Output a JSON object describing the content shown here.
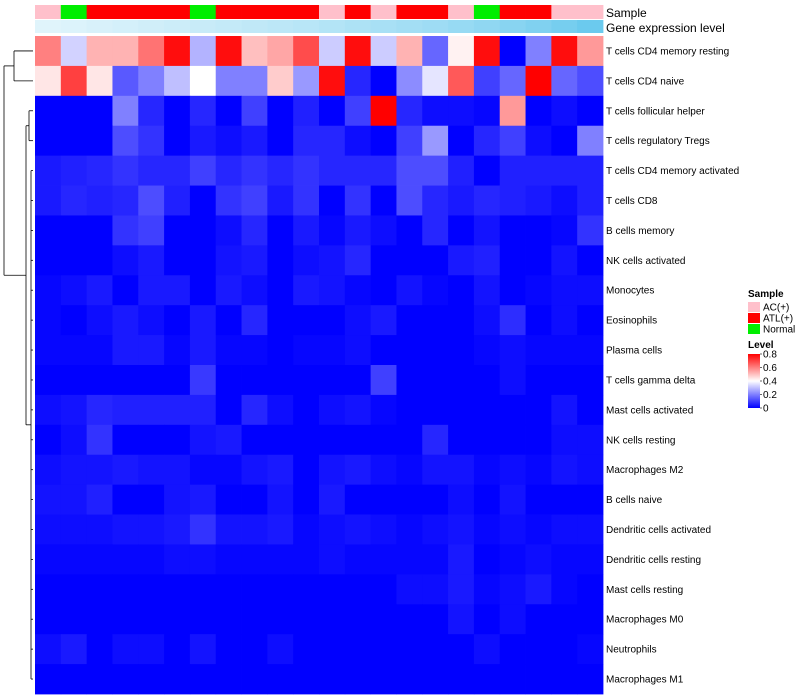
{
  "chart_data": {
    "type": "heatmap",
    "annotations": {
      "sample_label": "Sample",
      "expression_label": "Gene expression level",
      "samples": [
        "AC(+)",
        "Normal",
        "ATL(+)",
        "ATL(+)",
        "ATL(+)",
        "ATL(+)",
        "Normal",
        "ATL(+)",
        "ATL(+)",
        "ATL(+)",
        "ATL(+)",
        "AC(+)",
        "ATL(+)",
        "AC(+)",
        "ATL(+)",
        "ATL(+)",
        "AC(+)",
        "Normal",
        "ATL(+)",
        "ATL(+)",
        "AC(+)",
        "AC(+)"
      ],
      "expression": [
        0.0,
        0.03,
        0.06,
        0.09,
        0.12,
        0.15,
        0.18,
        0.21,
        0.24,
        0.27,
        0.3,
        0.34,
        0.38,
        0.42,
        0.46,
        0.5,
        0.55,
        0.6,
        0.66,
        0.72,
        0.8,
        0.88
      ]
    },
    "sample_colors": {
      "AC(+)": "#FFC0CB",
      "ATL(+)": "#FF0000",
      "Normal": "#00EE00"
    },
    "expression_colors": {
      "low": "#E0F4FB",
      "high": "#5BC4EC"
    },
    "rows": [
      "T cells CD4 memory resting",
      "T cells CD4 naive",
      "T cells follicular helper",
      "T cells regulatory  Tregs",
      "T cells CD4 memory activated",
      "T cells CD8",
      "B cells memory",
      "NK cells activated",
      "Monocytes",
      "Eosinophils",
      "Plasma cells",
      "T cells gamma delta",
      "Mast cells activated",
      "NK cells resting",
      "Macrophages M2",
      "B cells naive",
      "Dendritic cells activated",
      "Dendritic cells resting",
      "Mast cells resting",
      "Macrophages M0",
      "Neutrophils",
      "Macrophages M1"
    ],
    "values": [
      [
        0.6,
        0.33,
        0.52,
        0.52,
        0.62,
        0.78,
        0.28,
        0.78,
        0.5,
        0.54,
        0.68,
        0.32,
        0.78,
        0.32,
        0.52,
        0.16,
        0.42,
        0.78,
        0.0,
        0.2,
        0.78,
        0.56
      ],
      [
        0.44,
        0.7,
        0.44,
        0.14,
        0.2,
        0.3,
        0.4,
        0.2,
        0.2,
        0.48,
        0.24,
        0.78,
        0.06,
        0.0,
        0.22,
        0.36,
        0.66,
        0.1,
        0.16,
        0.8,
        0.16,
        0.12
      ],
      [
        0.0,
        0.0,
        0.0,
        0.2,
        0.06,
        0.0,
        0.06,
        0.0,
        0.1,
        0.0,
        0.05,
        0.0,
        0.1,
        0.8,
        0.06,
        0.02,
        0.02,
        0.01,
        0.56,
        0.0,
        0.02,
        0.0
      ],
      [
        0.0,
        0.0,
        0.0,
        0.12,
        0.08,
        0.0,
        0.04,
        0.02,
        0.04,
        0.0,
        0.06,
        0.06,
        0.02,
        0.0,
        0.1,
        0.24,
        0.0,
        0.06,
        0.1,
        0.02,
        0.0,
        0.2
      ],
      [
        0.04,
        0.05,
        0.06,
        0.08,
        0.06,
        0.06,
        0.1,
        0.06,
        0.08,
        0.06,
        0.08,
        0.06,
        0.06,
        0.06,
        0.12,
        0.12,
        0.05,
        0.0,
        0.05,
        0.05,
        0.05,
        0.05
      ],
      [
        0.04,
        0.06,
        0.05,
        0.06,
        0.12,
        0.05,
        0.0,
        0.08,
        0.1,
        0.04,
        0.08,
        0.0,
        0.08,
        0.0,
        0.12,
        0.06,
        0.04,
        0.06,
        0.05,
        0.04,
        0.02,
        0.05
      ],
      [
        0.0,
        0.0,
        0.0,
        0.08,
        0.1,
        0.0,
        0.0,
        0.02,
        0.06,
        0.0,
        0.04,
        0.01,
        0.04,
        0.02,
        0.0,
        0.06,
        0.0,
        0.03,
        0.0,
        0.0,
        0.01,
        0.08
      ],
      [
        0.0,
        0.0,
        0.0,
        0.02,
        0.04,
        0.0,
        0.0,
        0.03,
        0.04,
        0.0,
        0.02,
        0.03,
        0.06,
        0.0,
        0.0,
        0.0,
        0.04,
        0.05,
        0.0,
        0.0,
        0.03,
        0.0
      ],
      [
        0.01,
        0.02,
        0.04,
        0.0,
        0.04,
        0.04,
        0.0,
        0.04,
        0.02,
        0.0,
        0.04,
        0.03,
        0.01,
        0.0,
        0.03,
        0.01,
        0.0,
        0.03,
        0.0,
        0.01,
        0.02,
        0.02
      ],
      [
        0.01,
        0.0,
        0.02,
        0.04,
        0.02,
        0.0,
        0.04,
        0.0,
        0.06,
        0.0,
        0.0,
        0.0,
        0.02,
        0.04,
        0.0,
        0.0,
        0.0,
        0.02,
        0.07,
        0.0,
        0.02,
        0.0
      ],
      [
        0.01,
        0.01,
        0.01,
        0.04,
        0.04,
        0.01,
        0.04,
        0.01,
        0.01,
        0.0,
        0.01,
        0.01,
        0.02,
        0.0,
        0.0,
        0.0,
        0.0,
        0.01,
        0.02,
        0.01,
        0.01,
        0.01
      ],
      [
        0.0,
        0.0,
        0.0,
        0.0,
        0.0,
        0.0,
        0.09,
        0.0,
        0.0,
        0.0,
        0.0,
        0.0,
        0.0,
        0.1,
        0.0,
        0.0,
        0.0,
        0.0,
        0.02,
        0.0,
        0.0,
        0.0
      ],
      [
        0.02,
        0.03,
        0.06,
        0.05,
        0.05,
        0.05,
        0.05,
        0.0,
        0.06,
        0.02,
        0.0,
        0.02,
        0.03,
        0.01,
        0.0,
        0.0,
        0.0,
        0.0,
        0.0,
        0.0,
        0.03,
        0.0
      ],
      [
        0.0,
        0.02,
        0.08,
        0.0,
        0.0,
        0.0,
        0.03,
        0.04,
        0.0,
        0.0,
        0.0,
        0.0,
        0.0,
        0.0,
        0.0,
        0.06,
        0.0,
        0.0,
        0.0,
        0.0,
        0.02,
        0.02
      ],
      [
        0.02,
        0.03,
        0.03,
        0.04,
        0.03,
        0.03,
        0.01,
        0.01,
        0.03,
        0.04,
        0.0,
        0.03,
        0.04,
        0.02,
        0.01,
        0.03,
        0.03,
        0.01,
        0.02,
        0.01,
        0.03,
        0.02
      ],
      [
        0.03,
        0.03,
        0.05,
        0.0,
        0.0,
        0.03,
        0.04,
        0.0,
        0.0,
        0.03,
        0.0,
        0.04,
        0.0,
        0.0,
        0.0,
        0.0,
        0.02,
        0.0,
        0.03,
        0.0,
        0.0,
        0.0
      ],
      [
        0.02,
        0.02,
        0.02,
        0.03,
        0.03,
        0.04,
        0.08,
        0.03,
        0.03,
        0.04,
        0.01,
        0.02,
        0.03,
        0.02,
        0.01,
        0.02,
        0.03,
        0.01,
        0.02,
        0.01,
        0.02,
        0.02
      ],
      [
        0.01,
        0.01,
        0.01,
        0.01,
        0.01,
        0.02,
        0.02,
        0.01,
        0.01,
        0.01,
        0.01,
        0.02,
        0.01,
        0.01,
        0.01,
        0.01,
        0.04,
        0.0,
        0.01,
        0.02,
        0.01,
        0.01
      ],
      [
        0.0,
        0.0,
        0.0,
        0.0,
        0.0,
        0.0,
        0.0,
        0.0,
        0.0,
        0.0,
        0.0,
        0.0,
        0.0,
        0.0,
        0.02,
        0.02,
        0.04,
        0.01,
        0.02,
        0.04,
        0.01,
        0.0
      ],
      [
        0.0,
        0.0,
        0.0,
        0.0,
        0.0,
        0.0,
        0.0,
        0.0,
        0.0,
        0.0,
        0.0,
        0.0,
        0.0,
        0.0,
        0.0,
        0.0,
        0.03,
        0.0,
        0.02,
        0.0,
        0.0,
        0.0
      ],
      [
        0.02,
        0.04,
        0.0,
        0.02,
        0.02,
        0.0,
        0.03,
        0.0,
        0.0,
        0.02,
        0.0,
        0.0,
        0.0,
        0.0,
        0.0,
        0.0,
        0.0,
        0.02,
        0.0,
        0.0,
        0.0,
        0.01
      ],
      [
        0.0,
        0.0,
        0.0,
        0.0,
        0.0,
        0.0,
        0.0,
        0.0,
        0.0,
        0.0,
        0.0,
        0.0,
        0.0,
        0.0,
        0.0,
        0.0,
        0.0,
        0.0,
        0.0,
        0.0,
        0.0,
        0.0
      ]
    ],
    "color_scale": {
      "min": 0,
      "mid": 0.4,
      "max": 0.8,
      "low": "#0000FF",
      "mid_color": "#FFFFFF",
      "high": "#FF0000"
    },
    "legend": {
      "sample_title": "Sample",
      "sample_entries": [
        "AC(+)",
        "ATL(+)",
        "Normal"
      ],
      "level_title": "Level",
      "level_ticks": [
        {
          "value": 0.8,
          "label": "0.8"
        },
        {
          "value": 0.6,
          "label": "0.6"
        },
        {
          "value": 0.4,
          "label": "0.4"
        },
        {
          "value": 0.2,
          "label": "0.2"
        },
        {
          "value": 0.0,
          "label": "0"
        }
      ],
      "position": "right"
    }
  }
}
